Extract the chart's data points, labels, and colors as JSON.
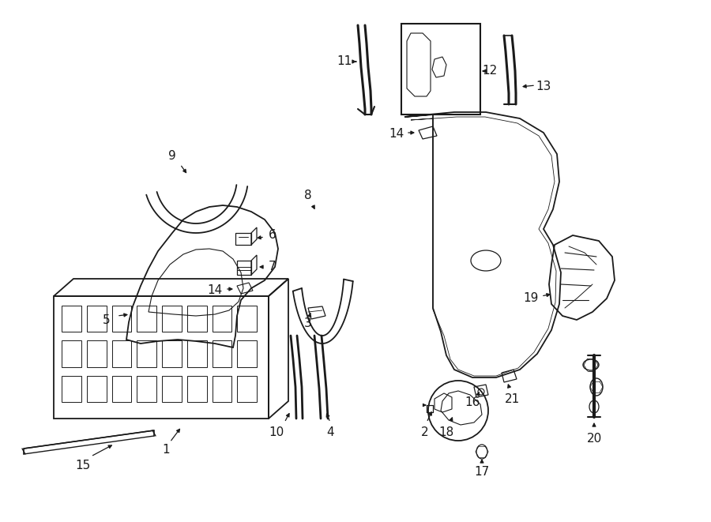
{
  "bg": "#ffffff",
  "lc": "#1a1a1a",
  "fw": 9.0,
  "fh": 6.61,
  "dpi": 100
}
